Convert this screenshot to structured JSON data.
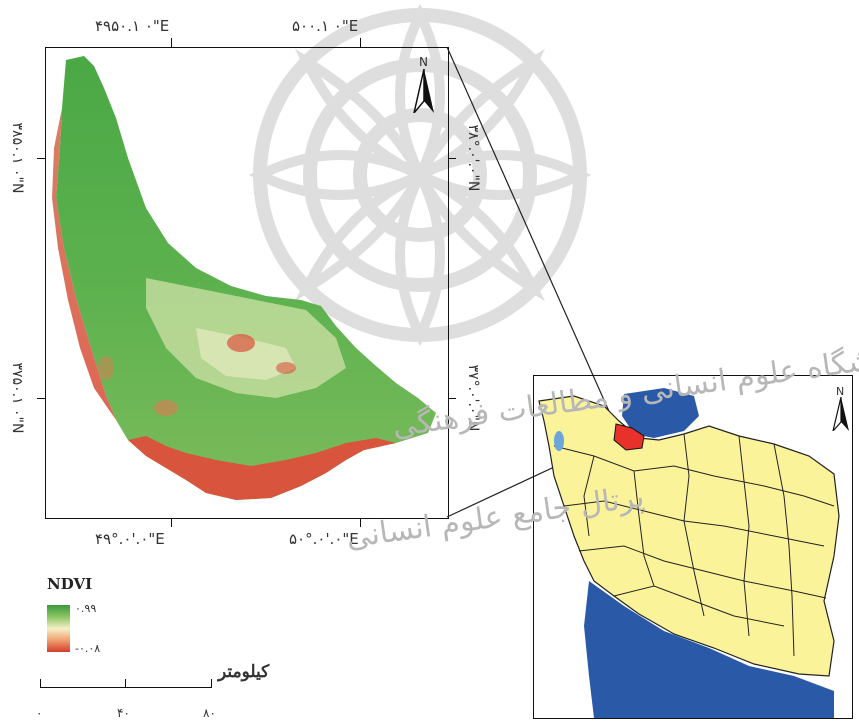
{
  "map": {
    "top_axis": {
      "left": "۴۹۵۰.۱ ۰\"E",
      "right": "۵۰۰.۱ ۰\"E"
    },
    "bottom_axis": {
      "left": "۴۹°.۰'.۰\"E",
      "right": "۵۰°.۰'.۰\"E"
    },
    "left_axis": {
      "top": "۳۸۵۰.۱ ۰\"N",
      "bottom": "۳۷۵۰.۱ ۰\"N"
    },
    "right_axis": {
      "top": "۳۸°.۰'.۰\"N",
      "bottom": "۳۷°.۰'.۰\"N"
    },
    "north_label": "N",
    "inset_north_label": "N"
  },
  "legend": {
    "title": "NDVI",
    "max": "۰.۹۹",
    "min": "-۰.۰۸"
  },
  "scale_bar": {
    "unit": "کیلومتر",
    "ticks": [
      "۰",
      "۴۰",
      "۸۰"
    ]
  },
  "colors": {
    "ndvi_high": "#3a9a3a",
    "ndvi_mid": "#f4f0c6",
    "ndvi_low": "#d23c2c",
    "province_fill": "#fbf39a",
    "water": "#2a59a8",
    "highlight": "#e8312a"
  },
  "watermark": {
    "line1": "پژوهشگاه علوم انسانی و مطالعات فرهنگی",
    "line2": "پرتال جامع علوم انسانی"
  }
}
